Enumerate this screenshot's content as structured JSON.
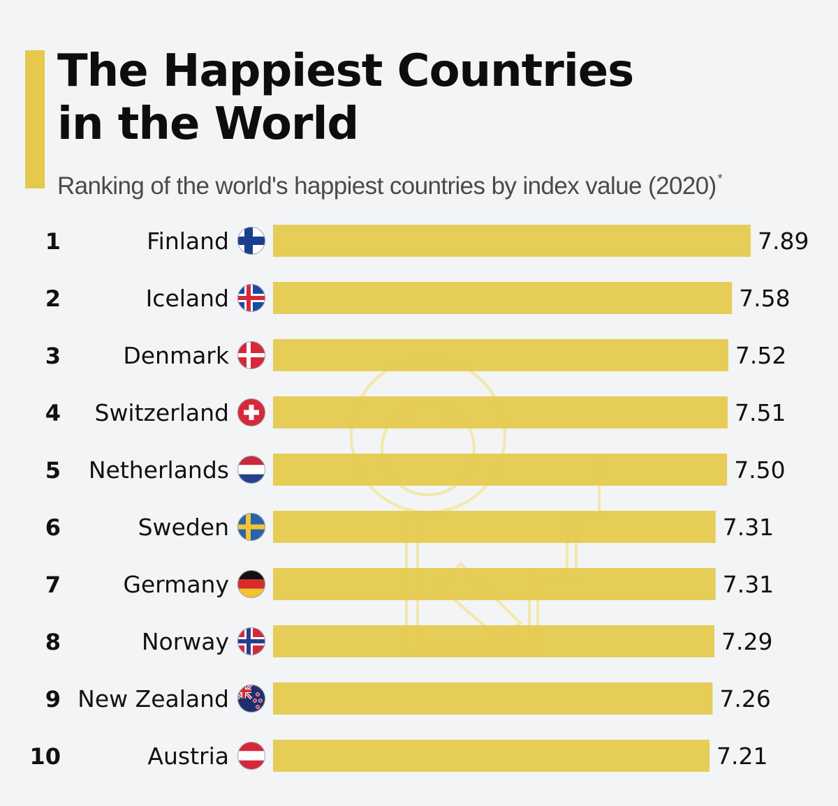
{
  "title": "The Happiest Countries\nin the World",
  "subtitle": "Ranking of the world's happiest countries by index value (2020)",
  "subtitle_note_marker": "*",
  "colors": {
    "accent": "#e4c94b",
    "bar": "#e4c94b",
    "background": "#f2f4f5"
  },
  "chart_data": {
    "type": "bar",
    "orientation": "horizontal",
    "title": "The Happiest Countries in the World",
    "subtitle": "Ranking of the world's happiest countries by index value (2020)*",
    "ranks": [
      "1",
      "2",
      "3",
      "4",
      "5",
      "6",
      "7",
      "8",
      "9",
      "10"
    ],
    "categories": [
      "Finland",
      "Iceland",
      "Denmark",
      "Switzerland",
      "Netherlands",
      "Sweden",
      "Germany",
      "Norway",
      "New Zealand",
      "Austria"
    ],
    "flags": [
      "finland-flag-icon",
      "iceland-flag-icon",
      "denmark-flag-icon",
      "switzerland-flag-icon",
      "netherlands-flag-icon",
      "sweden-flag-icon",
      "germany-flag-icon",
      "norway-flag-icon",
      "new-zealand-flag-icon",
      "austria-flag-icon"
    ],
    "values": [
      7.89,
      7.58,
      7.52,
      7.51,
      7.5,
      7.31,
      7.31,
      7.29,
      7.26,
      7.21
    ],
    "value_labels": [
      "7.89",
      "7.58",
      "7.52",
      "7.51",
      "7.50",
      "7.31",
      "7.31",
      "7.29",
      "7.26",
      "7.21"
    ],
    "xlim": [
      0,
      7.89
    ],
    "grid": false,
    "legend": "none",
    "data_labels": "end of bar"
  }
}
